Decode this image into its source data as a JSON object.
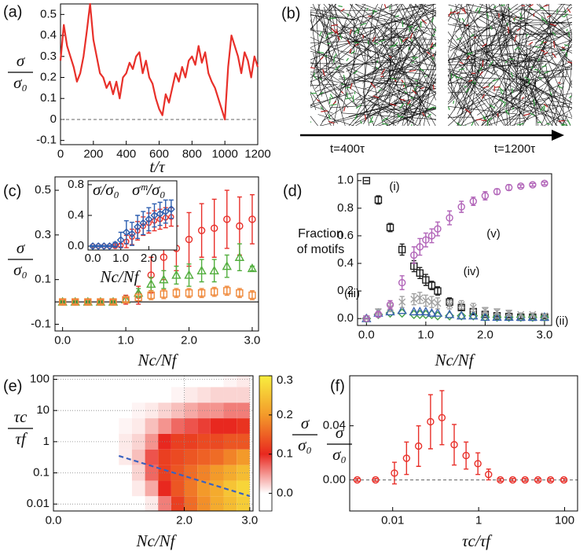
{
  "chart_data": [
    {
      "type": "line",
      "panel_label": "(a)",
      "xlabel": "t/τ",
      "ylabel": {
        "numerator": "σ",
        "denominator": "σ₀"
      },
      "xlim": [
        0,
        1200
      ],
      "ylim": [
        -0.12,
        0.55
      ],
      "xticks": [
        0,
        200,
        400,
        600,
        800,
        1000,
        1200
      ],
      "yticks": [
        -0.1,
        0,
        0.1,
        0.2,
        0.3,
        0.4,
        0.5
      ],
      "reference_line": 0,
      "reference_style": "dashed",
      "series": [
        {
          "color": "#e8302a",
          "x": [
            0,
            20,
            40,
            60,
            80,
            100,
            120,
            140,
            160,
            180,
            200,
            220,
            240,
            260,
            280,
            300,
            320,
            340,
            360,
            380,
            400,
            420,
            440,
            460,
            480,
            500,
            520,
            540,
            560,
            580,
            600,
            620,
            640,
            660,
            680,
            700,
            720,
            740,
            760,
            780,
            800,
            820,
            840,
            860,
            880,
            900,
            920,
            940,
            960,
            980,
            1000,
            1020,
            1040,
            1060,
            1080,
            1100,
            1120,
            1140,
            1160,
            1180,
            1200
          ],
          "values": [
            0.28,
            0.45,
            0.35,
            0.3,
            0.25,
            0.18,
            0.22,
            0.3,
            0.42,
            0.55,
            0.38,
            0.3,
            0.22,
            0.2,
            0.15,
            0.18,
            0.12,
            0.18,
            0.1,
            0.2,
            0.22,
            0.27,
            0.24,
            0.3,
            0.32,
            0.22,
            0.28,
            0.2,
            0.17,
            0.1,
            0.05,
            0.02,
            0.12,
            0.08,
            0.15,
            0.22,
            0.18,
            0.25,
            0.2,
            0.28,
            0.3,
            0.26,
            0.35,
            0.27,
            0.32,
            0.22,
            0.18,
            0.15,
            0.1,
            0.05,
            0.0,
            0.25,
            0.4,
            0.35,
            0.3,
            0.22,
            0.32,
            0.28,
            0.2,
            0.3,
            0.25
          ]
        }
      ]
    },
    {
      "type": "image",
      "panel_label": "(b)",
      "captions": [
        "t=400τ",
        "t=1200τ"
      ]
    },
    {
      "type": "errorbar",
      "panel_label": "(c)",
      "xlabel": "Nc/Nf",
      "ylabel": {
        "numerator": "σ",
        "denominator": "σ₀"
      },
      "xlim": [
        -0.12,
        3.1
      ],
      "ylim": [
        -0.13,
        0.56
      ],
      "xticks": [
        {
          "value": 0,
          "label": "0.0"
        },
        {
          "value": 1,
          "label": "1.0"
        },
        {
          "value": 2,
          "label": "2.0"
        },
        {
          "value": 3,
          "label": "3.0"
        }
      ],
      "yticks": [
        -0.1,
        0.1,
        0.3,
        0.5
      ],
      "reference_line": 0,
      "reference_style": "solid",
      "x": [
        0,
        0.2,
        0.4,
        0.6,
        0.8,
        1.0,
        1.2,
        1.4,
        1.6,
        1.8,
        2.0,
        2.2,
        2.4,
        2.6,
        2.8,
        3.0
      ],
      "series": [
        {
          "color": "#e8302a",
          "marker": "circle",
          "values": [
            0,
            0,
            0,
            0,
            0,
            0.01,
            0.03,
            0.12,
            0.2,
            0.24,
            0.28,
            0.32,
            0.33,
            0.37,
            0.34,
            0.37
          ],
          "errors": [
            0.01,
            0.01,
            0.01,
            0.01,
            0.01,
            0.02,
            0.04,
            0.08,
            0.1,
            0.1,
            0.12,
            0.12,
            0.13,
            0.13,
            0.13,
            0.11
          ]
        },
        {
          "color": "#52ae3e",
          "marker": "triangle",
          "values": [
            0,
            0,
            0,
            0,
            0,
            0.01,
            0.04,
            0.08,
            0.1,
            0.12,
            0.12,
            0.14,
            0.14,
            0.16,
            0.2,
            0.15
          ],
          "errors": [
            0.005,
            0.005,
            0.005,
            0.005,
            0.005,
            0.01,
            0.02,
            0.03,
            0.04,
            0.04,
            0.05,
            0.05,
            0.05,
            0.05,
            0.06,
            0.01
          ]
        },
        {
          "color": "#f08a3c",
          "marker": "square",
          "values": [
            0,
            0,
            0,
            0,
            0,
            0.01,
            0.02,
            0.03,
            0.035,
            0.04,
            0.04,
            0.04,
            0.045,
            0.05,
            0.04,
            0.03
          ],
          "errors": [
            0.01,
            0.01,
            0.01,
            0.01,
            0.01,
            0.01,
            0.015,
            0.02,
            0.02,
            0.02,
            0.02,
            0.02,
            0.02,
            0.02,
            0.02,
            0.02
          ]
        }
      ],
      "inset": {
        "xlabel": "Nc/Nf",
        "xlim": [
          -0.17,
          3.0
        ],
        "ylim": [
          -0.05,
          0.85
        ],
        "xticks": [
          {
            "value": 0,
            "label": "0.0"
          },
          {
            "value": 1,
            "label": "1.0"
          },
          {
            "value": 2,
            "label": "2.0"
          }
        ],
        "yticks": [
          {
            "value": 0,
            "label": "0.0"
          },
          0.4,
          0.8
        ],
        "x": [
          0,
          0.2,
          0.4,
          0.6,
          0.8,
          1.0,
          1.2,
          1.4,
          1.6,
          1.8,
          2.0,
          2.2,
          2.4,
          2.6,
          2.8
        ],
        "series": [
          {
            "name": "σ/σ₀",
            "color": "#e8302a",
            "marker": "circle",
            "values": [
              0,
              0,
              0,
              0,
              0,
              0.01,
              0.06,
              0.12,
              0.2,
              0.26,
              0.3,
              0.33,
              0.35,
              0.37,
              0.38
            ],
            "errors": [
              0.005,
              0.005,
              0.005,
              0.005,
              0.005,
              0.02,
              0.08,
              0.1,
              0.12,
              0.12,
              0.13,
              0.13,
              0.13,
              0.13,
              0.12
            ]
          },
          {
            "name": "σᵐ/σ₀",
            "color": "#2e5fb0",
            "marker": "diamond",
            "values": [
              0,
              0,
              0,
              0,
              0.02,
              0.08,
              0.18,
              0.16,
              0.25,
              0.3,
              0.35,
              0.4,
              0.42,
              0.45,
              0.48
            ],
            "errors": [
              0.005,
              0.005,
              0.005,
              0.005,
              0.03,
              0.1,
              0.15,
              0.15,
              0.15,
              0.15,
              0.15,
              0.15,
              0.15,
              0.15,
              0.12
            ]
          }
        ]
      }
    },
    {
      "type": "errorbar",
      "panel_label": "(d)",
      "xlabel": "Nc/Nf",
      "ylabel": [
        "Fraction",
        "of motifs"
      ],
      "xlim": [
        -0.15,
        3.12
      ],
      "ylim": [
        -0.05,
        1.05
      ],
      "xticks": [
        {
          "value": 0,
          "label": "0.0"
        },
        {
          "value": 1,
          "label": "1.0"
        },
        {
          "value": 2,
          "label": "2.0"
        },
        {
          "value": 3,
          "label": "3.0"
        }
      ],
      "yticks": [
        {
          "value": 0,
          "label": "0.0"
        },
        0.2,
        0.4,
        0.6,
        0.8,
        {
          "value": 1,
          "label": "1.0"
        }
      ],
      "x": [
        0,
        0.2,
        0.4,
        0.6,
        0.8,
        0.9,
        1.0,
        1.1,
        1.2,
        1.4,
        1.6,
        1.8,
        2.0,
        2.2,
        2.4,
        2.6,
        2.8,
        3.0
      ],
      "series": [
        {
          "name": "(i)",
          "color": "#222222",
          "marker": "square",
          "values": [
            1.0,
            0.86,
            0.66,
            0.5,
            0.38,
            0.33,
            0.28,
            0.24,
            0.2,
            0.12,
            0.08,
            0.05,
            0.03,
            0.02,
            0.015,
            0.01,
            0.01,
            0.01
          ],
          "errors": [
            0,
            0.03,
            0.03,
            0.04,
            0.04,
            0.04,
            0.04,
            0.03,
            0.03,
            0.03,
            0.02,
            0.02,
            0.01,
            0.01,
            0.01,
            0.01,
            0.01,
            0.01
          ]
        },
        {
          "name": "(ii)",
          "color": "#44a04a",
          "marker": "diamond",
          "values": [
            0,
            0.03,
            0.04,
            0.04,
            0.03,
            0.03,
            0.03,
            0.03,
            0.02,
            0.02,
            0.02,
            0.02,
            0.01,
            0.01,
            0.01,
            0.01,
            0.01,
            0.01
          ]
        },
        {
          "name": "(iii)",
          "color": "#3a63b0",
          "marker": "triangle",
          "values": [
            0,
            0.04,
            0.05,
            0.06,
            0.05,
            0.05,
            0.05,
            0.04,
            0.04,
            0.03,
            0.02,
            0.02,
            0.01,
            0.01,
            0.01,
            0.01,
            0.01,
            0.01
          ]
        },
        {
          "name": "(iv)",
          "color": "#a0a0a0",
          "marker": "x",
          "values": [
            0,
            0.05,
            0.08,
            0.12,
            0.14,
            0.15,
            0.13,
            0.12,
            0.11,
            0.1,
            0.1,
            0.08,
            0.06,
            0.05,
            0.04,
            0.03,
            0.03,
            0.02
          ],
          "errors": [
            0,
            0.02,
            0.03,
            0.04,
            0.04,
            0.04,
            0.04,
            0.04,
            0.04,
            0.03,
            0.03,
            0.03,
            0.02,
            0.02,
            0.02,
            0.01,
            0.01,
            0.01
          ]
        },
        {
          "name": "(v)",
          "color": "#b164b8",
          "marker": "circle",
          "values": [
            0,
            0.03,
            0.1,
            0.26,
            0.46,
            0.52,
            0.57,
            0.6,
            0.65,
            0.73,
            0.81,
            0.85,
            0.89,
            0.92,
            0.95,
            0.96,
            0.97,
            0.98
          ],
          "errors": [
            0,
            0.02,
            0.03,
            0.05,
            0.06,
            0.06,
            0.05,
            0.05,
            0.05,
            0.05,
            0.04,
            0.03,
            0.03,
            0.02,
            0.02,
            0.01,
            0.01,
            0.01
          ]
        }
      ]
    },
    {
      "type": "heatmap",
      "panel_label": "(e)",
      "xlabel": "Nc/Nf",
      "ylabel": {
        "numerator": "τc",
        "denominator": "τf"
      },
      "xlim": [
        0,
        3.05
      ],
      "ylim": [
        0.006,
        130
      ],
      "yscale": "log",
      "grid": true,
      "xticks": [
        {
          "value": 0,
          "label": "0.0"
        },
        {
          "value": 2,
          "label": "2.0"
        },
        {
          "value": 3,
          "label": "3.0"
        }
      ],
      "yticks": [
        0.01,
        0.1,
        1,
        10,
        100
      ],
      "x": [
        0.1,
        0.3,
        0.5,
        0.7,
        0.9,
        1.1,
        1.3,
        1.5,
        1.7,
        1.9,
        2.1,
        2.3,
        2.5,
        2.7,
        2.9
      ],
      "y": [
        100,
        31.6,
        10,
        3.16,
        1,
        0.316,
        0.1,
        0.0316,
        0.01
      ],
      "z": [
        [
          0,
          0,
          0,
          0,
          0,
          0,
          0,
          0,
          0,
          0,
          0,
          0,
          0,
          0.005,
          0.01
        ],
        [
          0,
          0,
          0,
          0,
          0,
          0,
          0,
          0,
          0,
          0.005,
          0.01,
          0.015,
          0.02,
          0.02,
          0.02
        ],
        [
          0,
          0,
          0,
          0,
          0,
          0,
          0.005,
          0.01,
          0.02,
          0.03,
          0.04,
          0.05,
          0.05,
          0.06,
          0.06
        ],
        [
          0,
          0,
          0,
          0,
          0,
          0.005,
          0.01,
          0.03,
          0.05,
          0.07,
          0.08,
          0.09,
          0.1,
          0.1,
          0.11
        ],
        [
          0,
          0,
          0,
          0,
          0,
          0.01,
          0.02,
          0.05,
          0.1,
          0.12,
          0.12,
          0.13,
          0.13,
          0.14,
          0.14
        ],
        [
          0,
          0,
          0,
          0,
          0,
          0.01,
          0.03,
          0.08,
          0.12,
          0.13,
          0.14,
          0.15,
          0.16,
          0.18,
          0.2
        ],
        [
          0,
          0,
          0,
          0,
          0,
          0,
          0.02,
          0.07,
          0.12,
          0.14,
          0.16,
          0.18,
          0.2,
          0.22,
          0.24
        ],
        [
          0,
          0,
          0,
          0,
          0,
          0,
          0.01,
          0.04,
          0.1,
          0.14,
          0.17,
          0.2,
          0.22,
          0.25,
          0.27
        ],
        [
          0,
          0,
          0,
          0,
          0,
          0,
          0,
          0.01,
          0.06,
          0.12,
          0.16,
          0.19,
          0.22,
          0.24,
          0.26
        ]
      ],
      "colormap": [
        "#ffffff",
        "#e8281f",
        "#f39a2a",
        "#f8ee3f"
      ],
      "crange": [
        0,
        0.3
      ],
      "colorbar": {
        "lim": [
          -0.045,
          0.3
        ],
        "ticks": [
          {
            "value": 0,
            "label": "0.0"
          },
          0.1,
          0.2,
          0.3
        ],
        "label": {
          "numerator": "σ",
          "denominator": "σ₀"
        }
      },
      "fit_line": {
        "x": [
          1.0,
          3.0
        ],
        "y": [
          0.35,
          0.018
        ],
        "color": "#3a62c0"
      }
    },
    {
      "type": "errorbar",
      "panel_label": "(f)",
      "xlabel": "τc/τf",
      "ylabel": {
        "numerator": "σ",
        "denominator": "σ₀"
      },
      "xscale": "log",
      "xlim": [
        0.001,
        200
      ],
      "ylim": [
        -0.023,
        0.077
      ],
      "xticks": [
        0.01,
        1,
        100
      ],
      "yticks": [
        {
          "value": 0,
          "label": "0.00"
        },
        0.04
      ],
      "reference_line": 0,
      "reference_style": "dashed",
      "x": [
        0.0015,
        0.004,
        0.011,
        0.021,
        0.04,
        0.076,
        0.14,
        0.27,
        0.51,
        0.96,
        1.7,
        3.2,
        6.2,
        12,
        24,
        47,
        96
      ],
      "series": [
        {
          "color": "#e8302a",
          "marker": "circle",
          "values": [
            0,
            0,
            0.005,
            0.016,
            0.025,
            0.043,
            0.046,
            0.026,
            0.018,
            0.012,
            0.004,
            0,
            0,
            0,
            0,
            0,
            0
          ],
          "errors": [
            0.001,
            0.001,
            0.008,
            0.012,
            0.015,
            0.02,
            0.02,
            0.015,
            0.01,
            0.008,
            0.004,
            0.001,
            0.001,
            0.001,
            0.001,
            0.001,
            0.001
          ]
        }
      ]
    }
  ]
}
